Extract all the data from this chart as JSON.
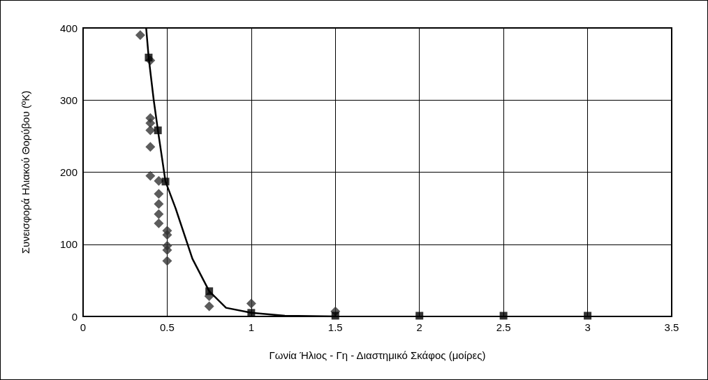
{
  "chart_data": {
    "type": "scatter",
    "xlabel": "Γωνία Ήλιος - Γη - Διαστημικό Σκάφος (μοίρες)",
    "ylabel": "Συνεισφορά Ηλιακού Θορύβου (ºK)",
    "xlim": [
      0,
      3.5
    ],
    "xticks": [
      0,
      0.5,
      1,
      1.5,
      2,
      2.5,
      3,
      3.5
    ],
    "ylim": [
      0,
      400
    ],
    "yticks": [
      0,
      100,
      200,
      300,
      400
    ],
    "grid": true,
    "series": [
      {
        "marker": "diamond",
        "color": "#333333",
        "x": [
          0.34,
          0.4,
          0.4,
          0.4,
          0.4,
          0.4,
          0.4,
          0.45,
          0.45,
          0.45,
          0.45,
          0.45,
          0.5,
          0.5,
          0.5,
          0.5,
          0.5,
          0.75,
          0.75,
          1,
          1.5
        ],
        "values": [
          390,
          355,
          275,
          268,
          258,
          235,
          195,
          188,
          170,
          156,
          142,
          129,
          119,
          113,
          98,
          92,
          77,
          28,
          14,
          18,
          7
        ]
      },
      {
        "marker": "square",
        "color": "#000000",
        "x": [
          0.39,
          0.445,
          0.49,
          0.75,
          1,
          1.5,
          2,
          2.5,
          3
        ],
        "values": [
          359,
          258,
          187,
          35,
          5,
          1,
          1,
          1,
          1
        ]
      },
      {
        "type": "line",
        "marker": "none",
        "line_style": "solid",
        "color": "#000000",
        "x": [
          0.375,
          0.39,
          0.42,
          0.445,
          0.49,
          0.55,
          0.65,
          0.75,
          0.85,
          1,
          1.2,
          1.5
        ],
        "values": [
          400,
          359,
          300,
          258,
          187,
          150,
          80,
          35,
          12,
          5,
          1,
          0
        ]
      }
    ]
  }
}
